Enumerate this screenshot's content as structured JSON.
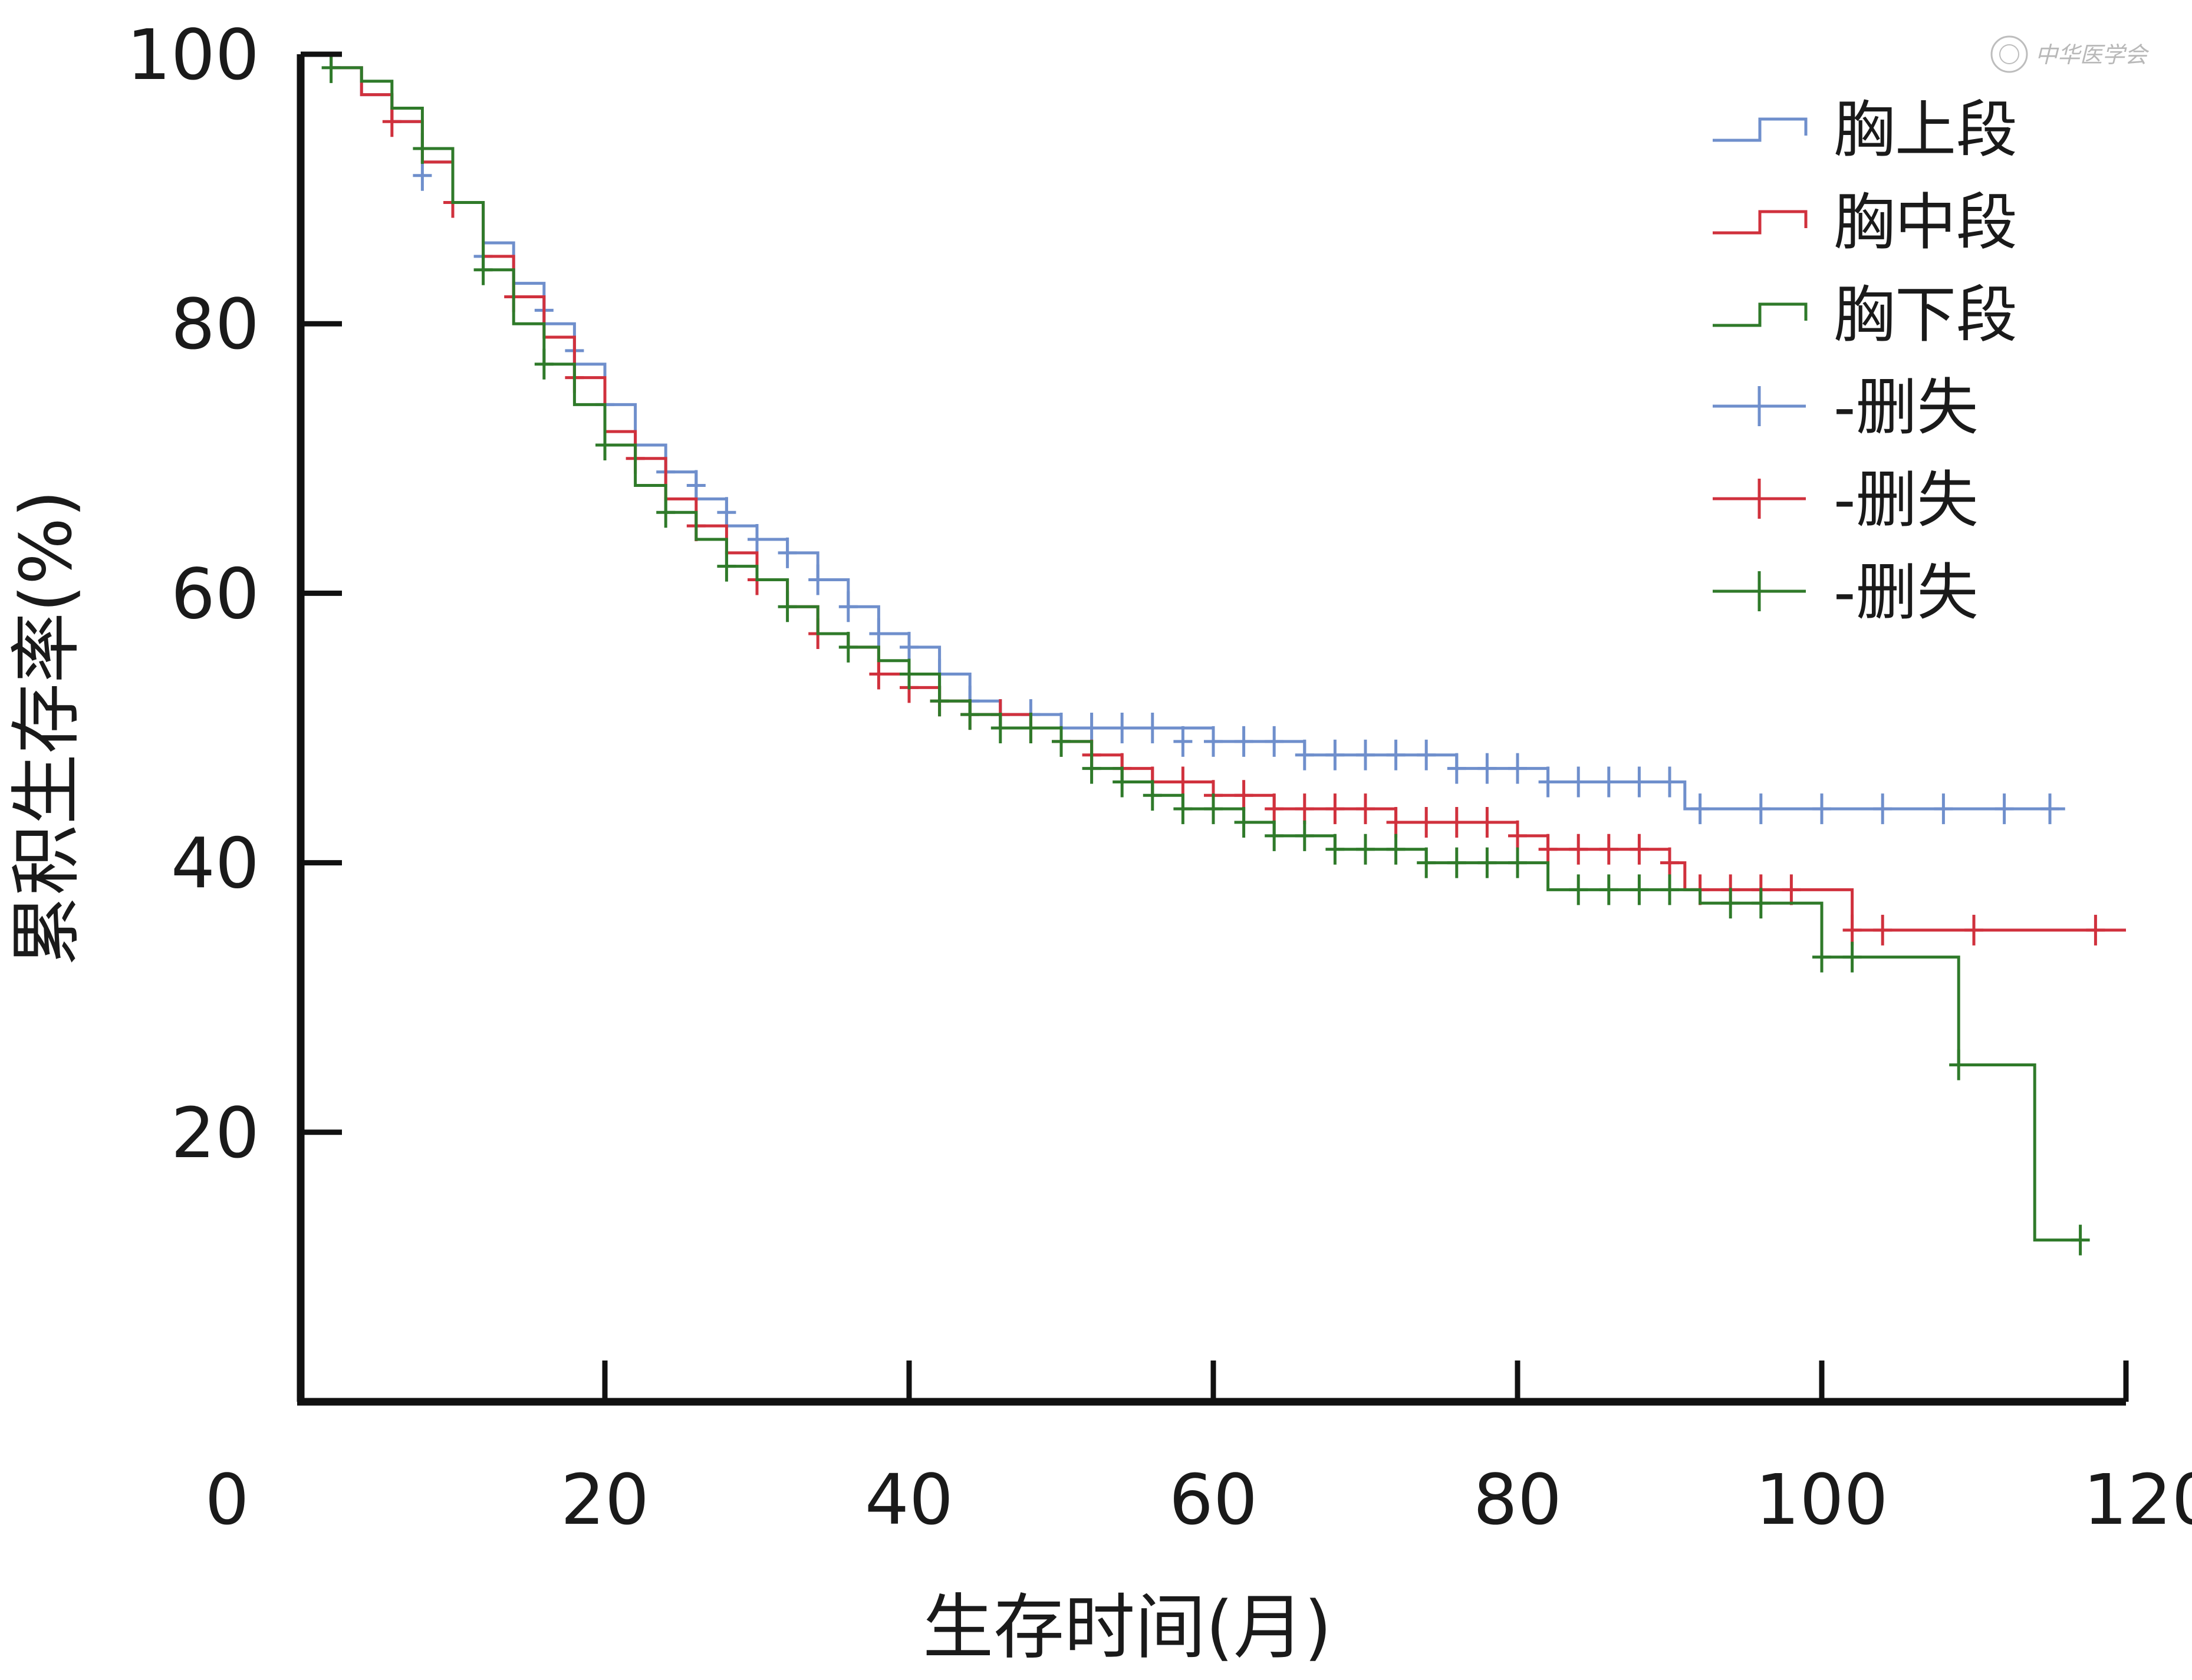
{
  "chart_data": {
    "type": "line",
    "subtype": "kaplan-meier",
    "xlabel": "生存时间(月)",
    "ylabel": "累积生存率(%)",
    "xlim": [
      0,
      120
    ],
    "ylim": [
      0,
      100
    ],
    "xticks": [
      0,
      20,
      40,
      60,
      80,
      100,
      120
    ],
    "yticks": [
      20,
      40,
      60,
      80,
      100
    ],
    "grid": false,
    "legend_position": "top-right",
    "censor_label": "-删失",
    "series": [
      {
        "name": "胸上段",
        "color": "#6f8fcc",
        "steps": [
          [
            0,
            100
          ],
          [
            2,
            99
          ],
          [
            4,
            97
          ],
          [
            6,
            95
          ],
          [
            8,
            92
          ],
          [
            10,
            89
          ],
          [
            12,
            86
          ],
          [
            14,
            83
          ],
          [
            16,
            80
          ],
          [
            18,
            77
          ],
          [
            20,
            74
          ],
          [
            22,
            71
          ],
          [
            24,
            69
          ],
          [
            26,
            67
          ],
          [
            28,
            65
          ],
          [
            30,
            64
          ],
          [
            32,
            63
          ],
          [
            34,
            61
          ],
          [
            36,
            59
          ],
          [
            38,
            57
          ],
          [
            40,
            56
          ],
          [
            42,
            54
          ],
          [
            44,
            52
          ],
          [
            46,
            51
          ],
          [
            50,
            50
          ],
          [
            56,
            50
          ],
          [
            60,
            49
          ],
          [
            64,
            49
          ],
          [
            66,
            48
          ],
          [
            70,
            48
          ],
          [
            74,
            48
          ],
          [
            76,
            47
          ],
          [
            80,
            47
          ],
          [
            82,
            46
          ],
          [
            90,
            46
          ],
          [
            91,
            44
          ],
          [
            116,
            44
          ]
        ],
        "censor_marks": [
          [
            8,
            91
          ],
          [
            12,
            85
          ],
          [
            16,
            81
          ],
          [
            18,
            78
          ],
          [
            20,
            74
          ],
          [
            24,
            69
          ],
          [
            26,
            68
          ],
          [
            28,
            66
          ],
          [
            30,
            64
          ],
          [
            32,
            63
          ],
          [
            34,
            61
          ],
          [
            36,
            59
          ],
          [
            38,
            57
          ],
          [
            40,
            56
          ],
          [
            42,
            54
          ],
          [
            44,
            52
          ],
          [
            46,
            51
          ],
          [
            48,
            51
          ],
          [
            50,
            50
          ],
          [
            52,
            50
          ],
          [
            54,
            50
          ],
          [
            56,
            50
          ],
          [
            58,
            49
          ],
          [
            60,
            49
          ],
          [
            62,
            49
          ],
          [
            64,
            49
          ],
          [
            66,
            48
          ],
          [
            68,
            48
          ],
          [
            70,
            48
          ],
          [
            72,
            48
          ],
          [
            74,
            48
          ],
          [
            76,
            47
          ],
          [
            78,
            47
          ],
          [
            80,
            47
          ],
          [
            82,
            46
          ],
          [
            84,
            46
          ],
          [
            86,
            46
          ],
          [
            88,
            46
          ],
          [
            90,
            46
          ],
          [
            92,
            44
          ],
          [
            96,
            44
          ],
          [
            100,
            44
          ],
          [
            104,
            44
          ],
          [
            108,
            44
          ],
          [
            112,
            44
          ],
          [
            115,
            44
          ]
        ]
      },
      {
        "name": "胸中段",
        "color": "#d0313d",
        "steps": [
          [
            0,
            100
          ],
          [
            2,
            99
          ],
          [
            4,
            97
          ],
          [
            6,
            95
          ],
          [
            8,
            92
          ],
          [
            10,
            89
          ],
          [
            12,
            85
          ],
          [
            14,
            82
          ],
          [
            16,
            79
          ],
          [
            18,
            76
          ],
          [
            20,
            72
          ],
          [
            22,
            70
          ],
          [
            24,
            67
          ],
          [
            26,
            65
          ],
          [
            28,
            63
          ],
          [
            30,
            61
          ],
          [
            32,
            59
          ],
          [
            34,
            57
          ],
          [
            36,
            56
          ],
          [
            38,
            54
          ],
          [
            40,
            53
          ],
          [
            42,
            52
          ],
          [
            44,
            51
          ],
          [
            46,
            51
          ],
          [
            48,
            50
          ],
          [
            50,
            49
          ],
          [
            52,
            48
          ],
          [
            54,
            47
          ],
          [
            56,
            46
          ],
          [
            58,
            46
          ],
          [
            60,
            45
          ],
          [
            62,
            45
          ],
          [
            64,
            44
          ],
          [
            66,
            44
          ],
          [
            70,
            44
          ],
          [
            72,
            43
          ],
          [
            76,
            43
          ],
          [
            80,
            42
          ],
          [
            82,
            41
          ],
          [
            84,
            41
          ],
          [
            90,
            40
          ],
          [
            91,
            38
          ],
          [
            100,
            38
          ],
          [
            102,
            35
          ],
          [
            120,
            35
          ]
        ],
        "censor_marks": [
          [
            6,
            95
          ],
          [
            10,
            89
          ],
          [
            14,
            82
          ],
          [
            18,
            76
          ],
          [
            22,
            70
          ],
          [
            26,
            65
          ],
          [
            30,
            61
          ],
          [
            34,
            57
          ],
          [
            38,
            54
          ],
          [
            40,
            53
          ],
          [
            42,
            52
          ],
          [
            44,
            51
          ],
          [
            46,
            51
          ],
          [
            48,
            50
          ],
          [
            50,
            49
          ],
          [
            52,
            48
          ],
          [
            54,
            47
          ],
          [
            56,
            46
          ],
          [
            58,
            46
          ],
          [
            60,
            45
          ],
          [
            62,
            45
          ],
          [
            64,
            44
          ],
          [
            66,
            44
          ],
          [
            68,
            44
          ],
          [
            70,
            44
          ],
          [
            72,
            43
          ],
          [
            74,
            43
          ],
          [
            76,
            43
          ],
          [
            78,
            43
          ],
          [
            80,
            42
          ],
          [
            82,
            41
          ],
          [
            84,
            41
          ],
          [
            86,
            41
          ],
          [
            88,
            41
          ],
          [
            90,
            40
          ],
          [
            92,
            38
          ],
          [
            94,
            38
          ],
          [
            96,
            38
          ],
          [
            98,
            38
          ],
          [
            102,
            35
          ],
          [
            104,
            35
          ],
          [
            110,
            35
          ],
          [
            118,
            35
          ]
        ]
      },
      {
        "name": "胸下段",
        "color": "#2f7a2a",
        "steps": [
          [
            0,
            100
          ],
          [
            2,
            99
          ],
          [
            4,
            98
          ],
          [
            6,
            96
          ],
          [
            8,
            93
          ],
          [
            10,
            89
          ],
          [
            12,
            84
          ],
          [
            14,
            80
          ],
          [
            16,
            77
          ],
          [
            18,
            74
          ],
          [
            20,
            71
          ],
          [
            22,
            68
          ],
          [
            24,
            66
          ],
          [
            26,
            64
          ],
          [
            28,
            62
          ],
          [
            30,
            61
          ],
          [
            32,
            59
          ],
          [
            34,
            57
          ],
          [
            36,
            56
          ],
          [
            38,
            55
          ],
          [
            40,
            54
          ],
          [
            42,
            52
          ],
          [
            44,
            51
          ],
          [
            46,
            50
          ],
          [
            48,
            50
          ],
          [
            50,
            49
          ],
          [
            52,
            47
          ],
          [
            54,
            46
          ],
          [
            56,
            45
          ],
          [
            58,
            44
          ],
          [
            60,
            44
          ],
          [
            62,
            43
          ],
          [
            64,
            42
          ],
          [
            66,
            42
          ],
          [
            68,
            41
          ],
          [
            70,
            41
          ],
          [
            74,
            40
          ],
          [
            80,
            40
          ],
          [
            82,
            38
          ],
          [
            90,
            38
          ],
          [
            92,
            37
          ],
          [
            100,
            37
          ],
          [
            100,
            33
          ],
          [
            109,
            33
          ],
          [
            109,
            25
          ],
          [
            114,
            25
          ],
          [
            114,
            12
          ],
          [
            117,
            12
          ]
        ],
        "censor_marks": [
          [
            2,
            99
          ],
          [
            8,
            93
          ],
          [
            12,
            84
          ],
          [
            16,
            77
          ],
          [
            20,
            71
          ],
          [
            24,
            66
          ],
          [
            28,
            62
          ],
          [
            32,
            59
          ],
          [
            36,
            56
          ],
          [
            40,
            54
          ],
          [
            42,
            52
          ],
          [
            44,
            51
          ],
          [
            46,
            50
          ],
          [
            48,
            50
          ],
          [
            50,
            49
          ],
          [
            52,
            47
          ],
          [
            54,
            46
          ],
          [
            56,
            45
          ],
          [
            58,
            44
          ],
          [
            60,
            44
          ],
          [
            62,
            43
          ],
          [
            64,
            42
          ],
          [
            66,
            42
          ],
          [
            68,
            41
          ],
          [
            70,
            41
          ],
          [
            72,
            41
          ],
          [
            74,
            40
          ],
          [
            76,
            40
          ],
          [
            78,
            40
          ],
          [
            80,
            40
          ],
          [
            84,
            38
          ],
          [
            86,
            38
          ],
          [
            88,
            38
          ],
          [
            90,
            38
          ],
          [
            94,
            37
          ],
          [
            96,
            37
          ],
          [
            100,
            33
          ],
          [
            102,
            33
          ],
          [
            109,
            25
          ],
          [
            117,
            12
          ]
        ]
      }
    ]
  }
}
